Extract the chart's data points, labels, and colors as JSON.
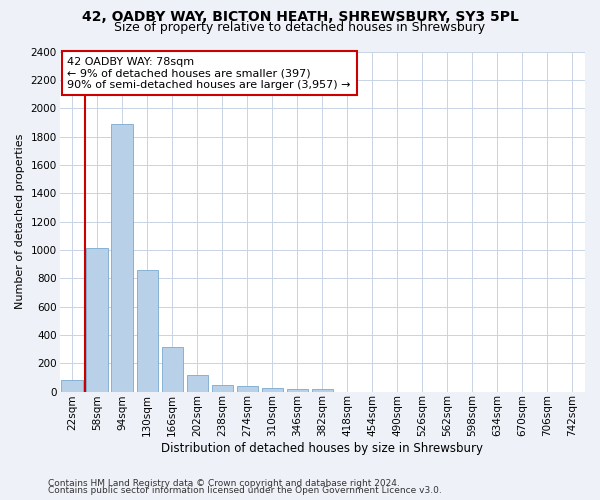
{
  "title1": "42, OADBY WAY, BICTON HEATH, SHREWSBURY, SY3 5PL",
  "title2": "Size of property relative to detached houses in Shrewsbury",
  "xlabel": "Distribution of detached houses by size in Shrewsbury",
  "ylabel": "Number of detached properties",
  "bar_labels": [
    "22sqm",
    "58sqm",
    "94sqm",
    "130sqm",
    "166sqm",
    "202sqm",
    "238sqm",
    "274sqm",
    "310sqm",
    "346sqm",
    "382sqm",
    "418sqm",
    "454sqm",
    "490sqm",
    "526sqm",
    "562sqm",
    "598sqm",
    "634sqm",
    "670sqm",
    "706sqm",
    "742sqm"
  ],
  "bar_values": [
    80,
    1010,
    1890,
    860,
    315,
    115,
    48,
    38,
    28,
    20,
    15,
    0,
    0,
    0,
    0,
    0,
    0,
    0,
    0,
    0,
    0
  ],
  "bar_color": "#b8d0e8",
  "bar_edgecolor": "#7aaad0",
  "vline_color": "#cc0000",
  "vline_x_idx": 1,
  "annotation_line1": "42 OADBY WAY: 78sqm",
  "annotation_line2": "← 9% of detached houses are smaller (397)",
  "annotation_line3": "90% of semi-detached houses are larger (3,957) →",
  "annotation_box_facecolor": "#ffffff",
  "annotation_box_edgecolor": "#cc0000",
  "ylim_max": 2400,
  "yticks": [
    0,
    200,
    400,
    600,
    800,
    1000,
    1200,
    1400,
    1600,
    1800,
    2000,
    2200,
    2400
  ],
  "footer1": "Contains HM Land Registry data © Crown copyright and database right 2024.",
  "footer2": "Contains public sector information licensed under the Open Government Licence v3.0.",
  "fig_facecolor": "#eef2f8",
  "plot_facecolor": "#ffffff",
  "grid_color": "#c8d4e4",
  "title1_fontsize": 10,
  "title2_fontsize": 9,
  "xlabel_fontsize": 8.5,
  "ylabel_fontsize": 8,
  "tick_fontsize": 7.5,
  "annot_fontsize": 8,
  "footer_fontsize": 6.5
}
